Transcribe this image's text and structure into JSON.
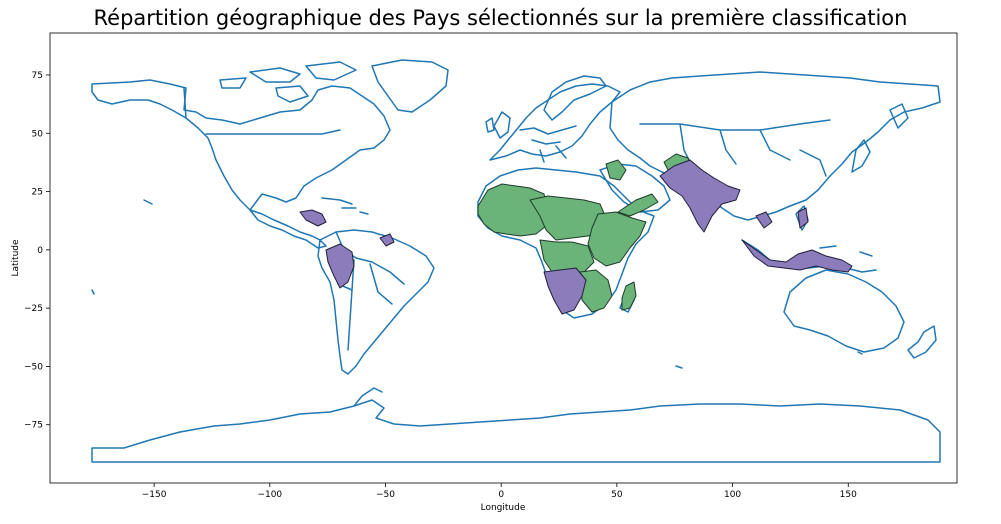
{
  "title": "Répartition géographique des Pays sélectionnés sur la première classification",
  "axes": {
    "xlabel": "Longitude",
    "ylabel": "Latitude",
    "xticks": [
      "−150",
      "−100",
      "−50",
      "0",
      "50",
      "100",
      "150"
    ],
    "yticks": [
      "75",
      "50",
      "25",
      "0",
      "−25",
      "−50",
      "−75"
    ]
  },
  "colors": {
    "outline": "#1f77b4",
    "group_green": "#6ab47a",
    "group_purple": "#8d7cbc"
  },
  "map_extent": {
    "lon": [
      -195,
      197
    ],
    "lat": [
      -100,
      93
    ]
  }
}
